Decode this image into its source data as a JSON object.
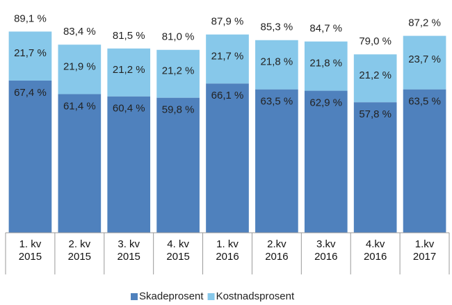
{
  "chart_data": {
    "type": "stacked-bar",
    "categories": [
      "1. kv\n2015",
      "2. kv\n2015",
      "3. kv\n2015",
      "4. kv\n2015",
      "1. kv\n2016",
      "2.kv\n2016",
      "3.kv\n2016",
      "4.kv\n2016",
      "1.kv\n2017"
    ],
    "series": [
      {
        "name": "Skadeprosent",
        "color": "#4f81bd",
        "values": [
          67.4,
          61.4,
          60.4,
          59.8,
          66.1,
          63.5,
          62.9,
          57.8,
          63.5
        ],
        "value_labels": [
          "67,4 %",
          "61,4 %",
          "60,4 %",
          "59,8 %",
          "66,1 %",
          "63,5 %",
          "62,9 %",
          "57,8 %",
          "63,5 %"
        ]
      },
      {
        "name": "Kostnadsprosent",
        "color": "#87c8ea",
        "values": [
          21.7,
          21.9,
          21.2,
          21.2,
          21.7,
          21.8,
          21.8,
          21.2,
          23.7
        ],
        "value_labels": [
          "21,7 %",
          "21,9 %",
          "21,2 %",
          "21,2 %",
          "21,7 %",
          "21,8 %",
          "21,8 %",
          "21,2 %",
          "23,7 %"
        ]
      }
    ],
    "totals": {
      "values": [
        89.1,
        83.4,
        81.5,
        81.0,
        87.9,
        85.3,
        84.7,
        79.0,
        87.2
      ],
      "value_labels": [
        "89,1 %",
        "83,4 %",
        "81,5 %",
        "81,0 %",
        "87,9 %",
        "85,3 %",
        "84,7 %",
        "79,0 %",
        "87,2 %"
      ]
    },
    "ylim": [
      0,
      100
    ],
    "legend": "bottom"
  }
}
